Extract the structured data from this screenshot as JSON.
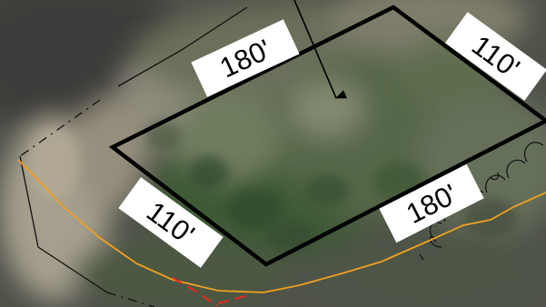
{
  "parcel": {
    "dimensions": {
      "top": "180'",
      "right": "110'",
      "bottom": "180'",
      "left": "110'"
    },
    "outline_color": "#000000"
  },
  "colors": {
    "orange_line": "#f0a020",
    "red_dashed_line": "#e8281e",
    "label_background": "#ffffff"
  }
}
